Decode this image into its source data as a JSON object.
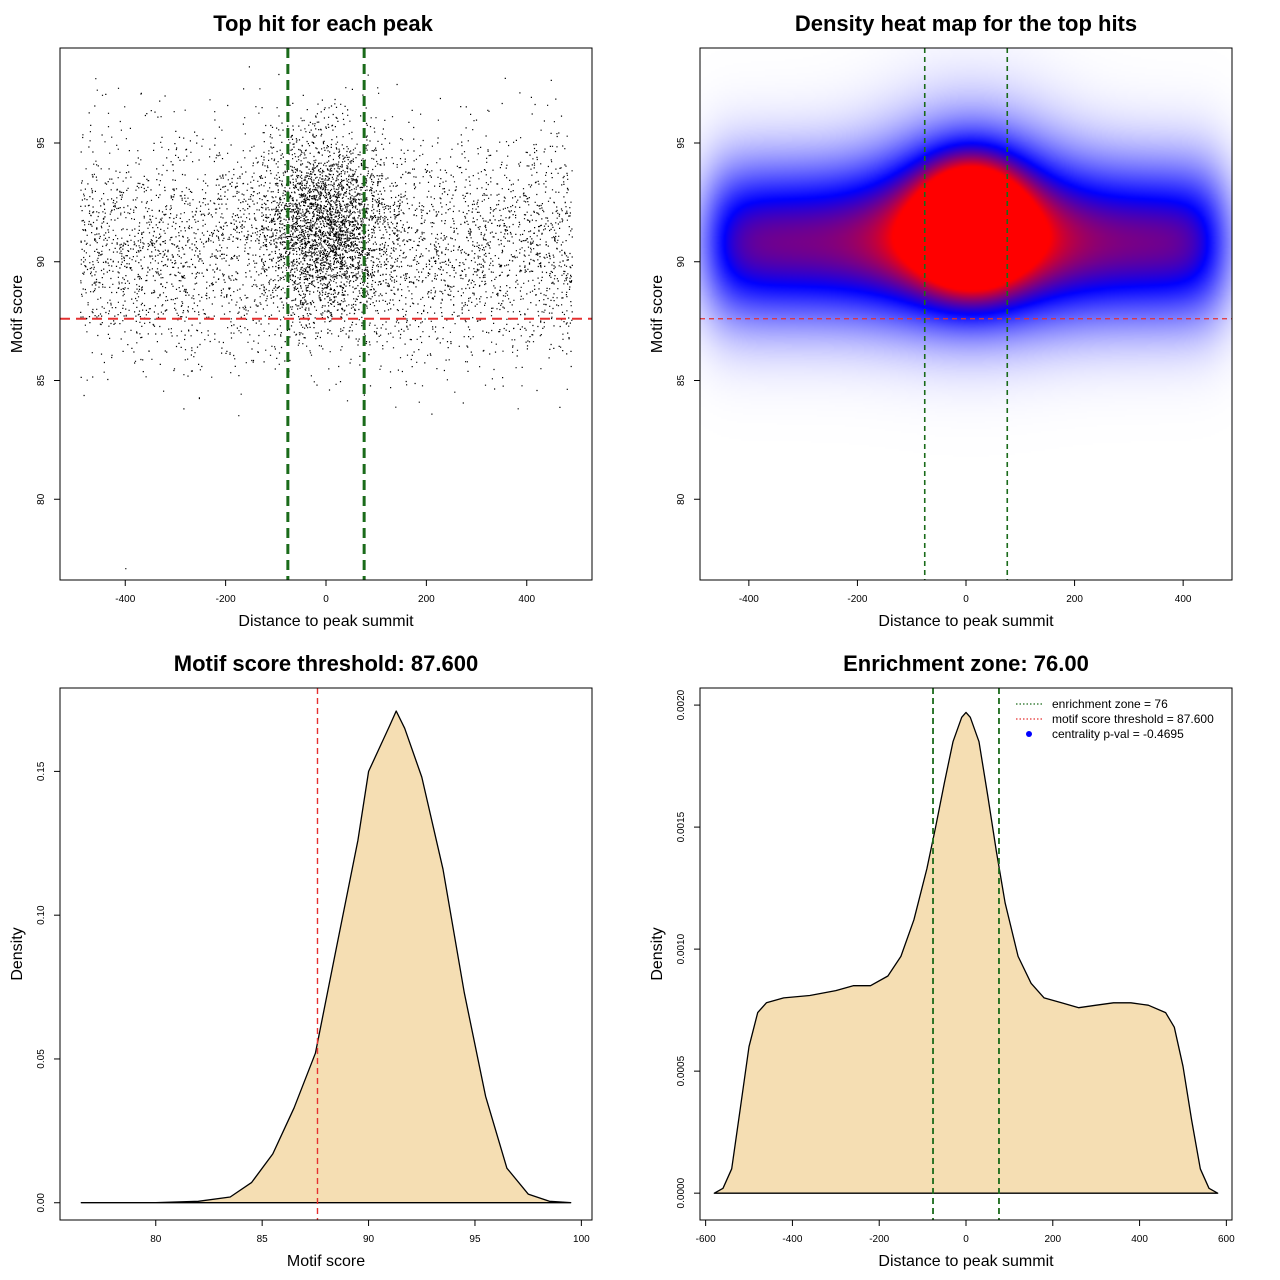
{
  "colors": {
    "threshold": "#e53030",
    "zone": "#1a6b1a",
    "fill": "#f5deb3",
    "hot": "#ff0000",
    "cold": "#0000ff",
    "legend_dot": "#0000ff"
  },
  "chart_data": [
    {
      "id": "scatter",
      "type": "scatter",
      "title": "Top hit for each peak",
      "xlabel": "Distance to peak summit",
      "ylabel": "Motif score",
      "xlim": [
        -530,
        530
      ],
      "ylim": [
        76.6,
        99.0
      ],
      "xticks": [
        -400,
        -200,
        0,
        200,
        400
      ],
      "xtick_labels": [
        "-400",
        "-200",
        "0",
        "200",
        "400"
      ],
      "yticks": [
        80,
        85,
        90,
        95
      ],
      "ytick_labels": [
        "80",
        "85",
        "90",
        "95"
      ],
      "hline": 87.6,
      "vlines": [
        -76,
        76
      ],
      "point_model": {
        "n": 14000,
        "x_range": [
          -490,
          490
        ],
        "uniform_mean": 90.6,
        "uniform_sd": 2.4,
        "central_fraction": 0.18,
        "central_x_sd": 60,
        "central_mean": 91.6,
        "central_sd": 1.8
      }
    },
    {
      "id": "heatmap",
      "type": "heatmap",
      "title": "Density heat map for the top hits",
      "xlabel": "Distance to peak summit",
      "ylabel": "Motif score",
      "xlim": [
        -490,
        490
      ],
      "ylim": [
        76.6,
        99.0
      ],
      "xticks": [
        -400,
        -200,
        0,
        200,
        400
      ],
      "xtick_labels": [
        "-400",
        "-200",
        "0",
        "200",
        "400"
      ],
      "yticks": [
        80,
        85,
        90,
        95
      ],
      "ytick_labels": [
        "80",
        "85",
        "90",
        "95"
      ],
      "hline": 87.6,
      "vlines": [
        -76,
        76
      ],
      "band_center": 90.8,
      "band_sd": 2.3,
      "hotspot": {
        "x": 10,
        "y": 91.6,
        "x_sd": 62,
        "y_sd": 1.7
      }
    },
    {
      "id": "score_density",
      "type": "area",
      "title": "Motif score threshold: 87.600",
      "xlabel": "Motif score",
      "ylabel": "Density",
      "xlim": [
        75.5,
        100.5
      ],
      "ylim": [
        -0.006,
        0.179
      ],
      "xticks": [
        80,
        85,
        90,
        95,
        100
      ],
      "xtick_labels": [
        "80",
        "85",
        "90",
        "95",
        "100"
      ],
      "yticks": [
        0,
        0.05,
        0.1,
        0.15
      ],
      "ytick_labels": [
        "0.00",
        "0.05",
        "0.10",
        "0.15"
      ],
      "vline": 87.6,
      "x": [
        76.5,
        80,
        82,
        83.5,
        84.5,
        85.5,
        86.5,
        87.5,
        88.5,
        89.5,
        90,
        90.5,
        91,
        91.3,
        91.7,
        92.5,
        93.5,
        94.5,
        95.5,
        96.5,
        97.5,
        98.5,
        99.5
      ],
      "y": [
        0.0,
        0.0,
        0.0005,
        0.002,
        0.007,
        0.017,
        0.033,
        0.052,
        0.089,
        0.126,
        0.15,
        0.158,
        0.166,
        0.171,
        0.165,
        0.148,
        0.116,
        0.073,
        0.037,
        0.012,
        0.003,
        0.0005,
        0.0
      ]
    },
    {
      "id": "distance_density",
      "type": "area",
      "title": "Enrichment zone: 76.00",
      "xlabel": "Distance to peak summit",
      "ylabel": "Density",
      "xlim": [
        -613,
        613
      ],
      "ylim": [
        -0.00011,
        0.00207
      ],
      "xticks": [
        -600,
        -400,
        -200,
        0,
        200,
        400,
        600
      ],
      "xtick_labels": [
        "-600",
        "-400",
        "-200",
        "0",
        "200",
        "400",
        "600"
      ],
      "yticks": [
        0,
        0.0005,
        0.001,
        0.0015,
        0.002
      ],
      "ytick_labels": [
        "0.0000",
        "0.0005",
        "0.0010",
        "0.0015",
        "0.0020"
      ],
      "vlines": [
        -76,
        76
      ],
      "x": [
        -580,
        -560,
        -540,
        -520,
        -500,
        -480,
        -460,
        -420,
        -360,
        -300,
        -260,
        -220,
        -180,
        -150,
        -120,
        -90,
        -70,
        -50,
        -30,
        -10,
        0,
        10,
        30,
        50,
        70,
        90,
        120,
        150,
        180,
        220,
        260,
        300,
        340,
        380,
        420,
        460,
        480,
        500,
        520,
        540,
        560,
        580
      ],
      "y": [
        0.0,
        2e-05,
        0.0001,
        0.00035,
        0.0006,
        0.00074,
        0.00078,
        0.0008,
        0.00081,
        0.00083,
        0.00085,
        0.00085,
        0.00089,
        0.00097,
        0.00112,
        0.00133,
        0.0015,
        0.00168,
        0.00185,
        0.00195,
        0.00197,
        0.00195,
        0.00185,
        0.00163,
        0.0014,
        0.00119,
        0.00097,
        0.00086,
        0.0008,
        0.00078,
        0.00076,
        0.00077,
        0.00078,
        0.00078,
        0.00077,
        0.00074,
        0.00068,
        0.00052,
        0.0003,
        0.0001,
        2e-05,
        0.0
      ],
      "legend": [
        {
          "label": "enrichment zone = 76",
          "kind": "dotted-green"
        },
        {
          "label": "motif score threshold = 87.600",
          "kind": "dotted-red"
        },
        {
          "label": "centrality p-val = -0.4695",
          "kind": "blue-dot"
        }
      ]
    }
  ]
}
